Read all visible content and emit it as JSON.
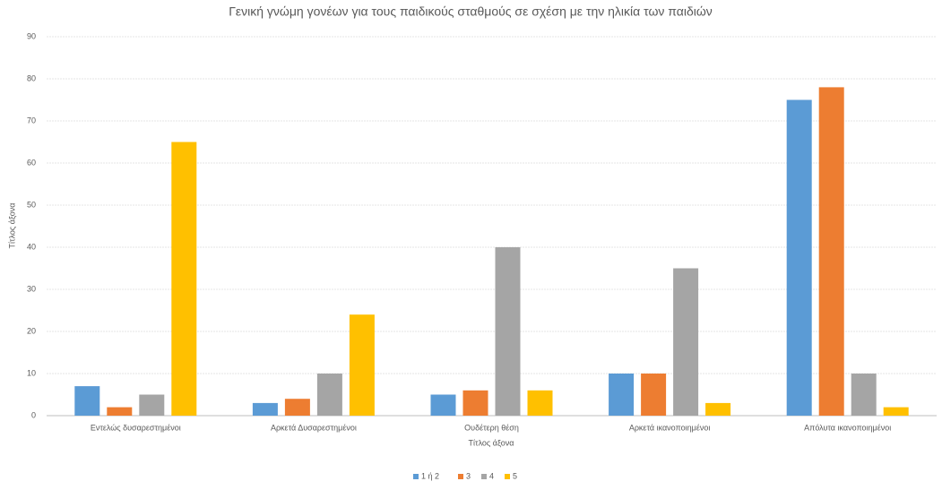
{
  "chart_data": {
    "type": "bar",
    "title": "Γενική γνώμη γονέων για τους παιδικούς σταθμούς σε σχέση με την ηλικία των παιδιών",
    "x_label": "Τίτλος άξονα",
    "y_label": "Τίτλος άξονα",
    "categories": [
      "Εντελώς δυσαρεστημένοι",
      "Αρκετά Δυσαρεστημένοι",
      "Ουδέτερη θέση",
      "Αρκετά ικανοποιημένοι",
      "Απόλυτα ικανοποιημένοι"
    ],
    "series": [
      {
        "name": "1 ή 2",
        "color": "#5b9bd5",
        "values": [
          7,
          3,
          5,
          10,
          75
        ]
      },
      {
        "name": "3",
        "color": "#ed7d31",
        "values": [
          2,
          4,
          6,
          10,
          78
        ]
      },
      {
        "name": "4",
        "color": "#a5a5a5",
        "values": [
          5,
          10,
          40,
          35,
          10
        ]
      },
      {
        "name": "5",
        "color": "#ffc000",
        "values": [
          65,
          24,
          6,
          3,
          2
        ]
      }
    ],
    "ylim": [
      0,
      90
    ],
    "yticks": [
      0,
      10,
      20,
      30,
      40,
      50,
      60,
      70,
      80,
      90
    ],
    "grid": true,
    "legend": "bottom"
  }
}
